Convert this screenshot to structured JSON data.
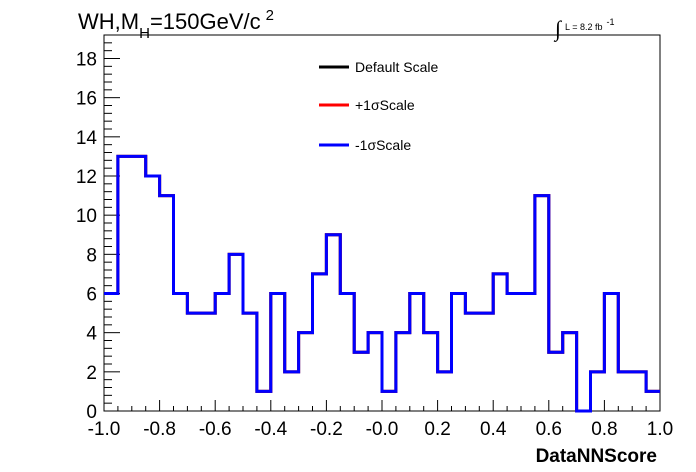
{
  "chart_data": {
    "type": "line",
    "title": {
      "part1": "WH,M",
      "sub": "H",
      "part2": "=150GeV/c",
      "sup": "2"
    },
    "luminosity": {
      "integral": "∫",
      "label": "L = 8.2 fb",
      "sup": "-1"
    },
    "xlabel": "DataNNScore",
    "ylabel": "",
    "xlim": [
      -1.0,
      1.0
    ],
    "ylim": [
      0,
      19.2
    ],
    "x_ticks": [
      "-1.0",
      "-0.8",
      "-0.6",
      "-0.4",
      "-0.2",
      "-0.0",
      "0.2",
      "0.4",
      "0.6",
      "0.8",
      "1.0"
    ],
    "y_ticks": [
      "0",
      "2",
      "4",
      "6",
      "8",
      "10",
      "12",
      "14",
      "16",
      "18"
    ],
    "grid": false,
    "legend_position": "top-center",
    "bin_edges": [
      -1.0,
      -0.95,
      -0.9,
      -0.85,
      -0.8,
      -0.75,
      -0.7,
      -0.65,
      -0.6,
      -0.55,
      -0.5,
      -0.45,
      -0.4,
      -0.35,
      -0.3,
      -0.25,
      -0.2,
      -0.15,
      -0.1,
      -0.05,
      0.0,
      0.05,
      0.1,
      0.15,
      0.2,
      0.25,
      0.3,
      0.35,
      0.4,
      0.45,
      0.5,
      0.55,
      0.6,
      0.65,
      0.7,
      0.75,
      0.8,
      0.85,
      0.9,
      0.95,
      1.0
    ],
    "series": [
      {
        "name": "Default Scale",
        "color": "#000000",
        "values": [
          6,
          13,
          13,
          12,
          11,
          6,
          5,
          5,
          6,
          8,
          5,
          1,
          6,
          2,
          4,
          7,
          9,
          6,
          3,
          4,
          1,
          4,
          6,
          4,
          2,
          6,
          5,
          5,
          7,
          6,
          6,
          11,
          3,
          4,
          0,
          2,
          6,
          2,
          2,
          1
        ]
      },
      {
        "name": "+1σScale",
        "color": "#ff0000",
        "values": [
          6,
          13,
          13,
          12,
          11,
          6,
          5,
          5,
          6,
          8,
          5,
          1,
          6,
          2,
          4,
          7,
          9,
          6,
          3,
          4,
          1,
          4,
          6,
          4,
          2,
          6,
          5,
          5,
          7,
          6,
          6,
          11,
          3,
          4,
          0,
          2,
          6,
          2,
          2,
          1
        ]
      },
      {
        "name": "-1σScale",
        "color": "#0000ff",
        "values": [
          6,
          13,
          13,
          12,
          11,
          6,
          5,
          5,
          6,
          8,
          5,
          1,
          6,
          2,
          4,
          7,
          9,
          6,
          3,
          4,
          1,
          4,
          6,
          4,
          2,
          6,
          5,
          5,
          7,
          6,
          6,
          11,
          3,
          4,
          0,
          2,
          6,
          2,
          2,
          1
        ]
      }
    ]
  }
}
